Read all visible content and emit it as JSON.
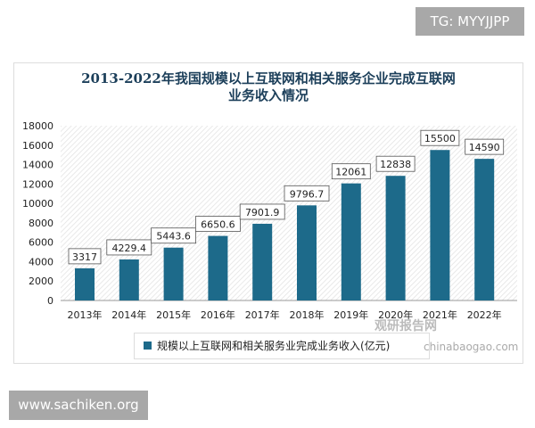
{
  "watermark_top": "TG: MYYJJPP",
  "watermark_bottom": "www.sachiken.org",
  "watermark_logo": "观研报告网",
  "watermark_logo_url": "chinabaogao.com",
  "chart_data": {
    "type": "bar",
    "title": "2013-2022年我国规模以上互联网和相关服务企业完成互联网业务收入情况",
    "title_lines": [
      "2013-2022年我国规模以上互联网和相关服务企业完成互联网",
      "业务收入情况"
    ],
    "categories": [
      "2013年",
      "2014年",
      "2015年",
      "2016年",
      "2017年",
      "2018年",
      "2019年",
      "2020年",
      "2021年",
      "2022年"
    ],
    "series": [
      {
        "name": "规模以上互联网和相关服务业完成业务收入(亿元)",
        "values": [
          3317,
          4229.4,
          5443.6,
          6650.6,
          7901.9,
          9796.7,
          12061,
          12838,
          15500,
          14590
        ],
        "labels": [
          "3317",
          "4229.4",
          "5443.6",
          "6650.6",
          "7901.9",
          "9796.7",
          "12061",
          "12838",
          "15500",
          "14590"
        ]
      }
    ],
    "ylim": [
      0,
      18000
    ],
    "yticks": [
      "0",
      "2000",
      "4000",
      "6000",
      "8000",
      "10000",
      "12000",
      "14000",
      "16000",
      "18000"
    ],
    "legend": "bottom",
    "bar_color": "#1d6a8a",
    "background": "hatched"
  }
}
